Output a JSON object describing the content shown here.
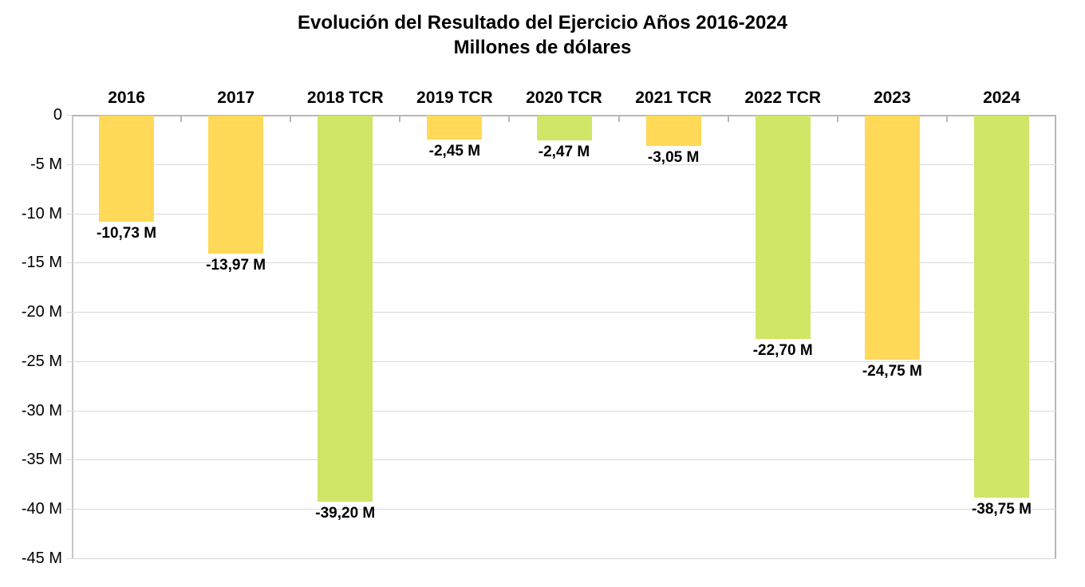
{
  "title": {
    "line1": "Evolución del Resultado del Ejercicio Años 2016-2024",
    "line2": "Millones de dólares"
  },
  "chart_data": {
    "type": "bar",
    "title": "Evolución del Resultado del Ejercicio Años 2016-2024",
    "subtitle": "Millones de dólares",
    "categories": [
      "2016",
      "2017",
      "2018 TCR",
      "2019 TCR",
      "2020 TCR",
      "2021 TCR",
      "2022 TCR",
      "2023",
      "2024"
    ],
    "values": [
      -10.73,
      -13.97,
      -39.2,
      -2.45,
      -2.47,
      -3.05,
      -22.7,
      -24.75,
      -38.75
    ],
    "value_labels": [
      "-10,73 M",
      "-13,97 M",
      "-39,20 M",
      "-2,45 M",
      "-2,47 M",
      "-3,05 M",
      "-22,70 M",
      "-24,75 M",
      "-38,75 M"
    ],
    "bar_colors": [
      "#ffd957",
      "#ffd957",
      "#cfe667",
      "#ffd957",
      "#cfe667",
      "#ffd957",
      "#cfe667",
      "#ffd957",
      "#cfe667"
    ],
    "y_ticks": [
      "0",
      "-5 M",
      "-10 M",
      "-15 M",
      "-20 M",
      "-25 M",
      "-30 M",
      "-35 M",
      "-40 M",
      "-45 M"
    ],
    "xlabel": "",
    "ylabel": "",
    "ylim": [
      -45,
      0
    ],
    "grid": "horizontal",
    "legend": "none"
  },
  "colors": {
    "bar_yellow": "#ffd957",
    "bar_green": "#cfe667",
    "gridline": "#d9d9d9",
    "axis_border": "#b7b7b7",
    "text": "#000000",
    "background": "#ffffff"
  }
}
